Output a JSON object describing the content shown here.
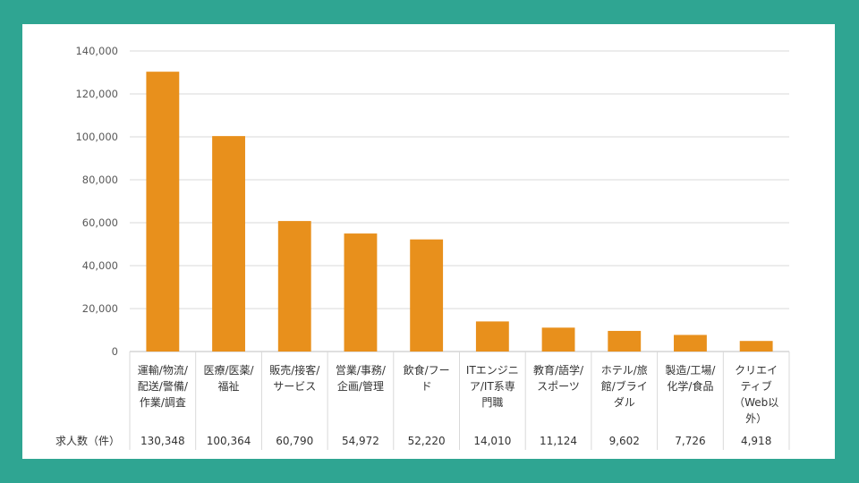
{
  "chart_data": {
    "type": "bar",
    "title": "",
    "xlabel": "",
    "ylabel": "",
    "ylim": [
      0,
      140000
    ],
    "y_ticks": [
      "0",
      "20,000",
      "40,000",
      "60,000",
      "80,000",
      "100,000",
      "120,000",
      "140,000"
    ],
    "grid": true,
    "bar_color": "#e8901c",
    "categories": [
      [
        "運輸/物流/",
        "配送/警備/",
        "作業/調査"
      ],
      [
        "医療/医薬/",
        "福祉"
      ],
      [
        "販売/接客/",
        "サービス"
      ],
      [
        "営業/事務/",
        "企画/管理"
      ],
      [
        "飲食/フー",
        "ド"
      ],
      [
        "ITエンジニ",
        "ア/IT系専",
        "門職"
      ],
      [
        "教育/語学/",
        "スポーツ"
      ],
      [
        "ホテル/旅",
        "館/ブライ",
        "ダル"
      ],
      [
        "製造/工場/",
        "化学/食品"
      ],
      [
        "クリエイ",
        "ティブ",
        "（Web以",
        "外）"
      ]
    ],
    "values": [
      130348,
      100364,
      60790,
      54972,
      52220,
      14010,
      11124,
      9602,
      7726,
      4918
    ],
    "value_labels": [
      "130,348",
      "100,364",
      "60,790",
      "54,972",
      "52,220",
      "14,010",
      "11,124",
      "9,602",
      "7,726",
      "4,918"
    ],
    "row_header": "求人数（件）"
  }
}
